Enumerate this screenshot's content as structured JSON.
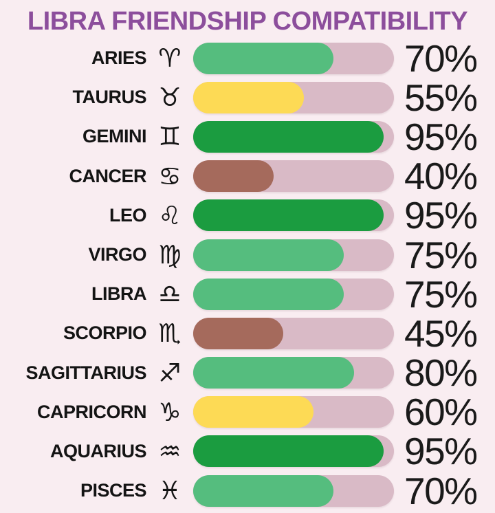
{
  "title": "LIBRA FRIENDSHIP COMPATIBILITY",
  "colors": {
    "background": "#f9edf1",
    "title": "#8c4e9c",
    "text": "#141414",
    "track": "#d9bac6",
    "green_dark": "#1b9c40",
    "green_medium": "#55bd7e",
    "yellow": "#fdda55",
    "brown": "#a56a5c"
  },
  "chart_data": {
    "type": "bar",
    "orientation": "horizontal",
    "title": "LIBRA FRIENDSHIP COMPATIBILITY",
    "unit": "%",
    "xlim": [
      0,
      100
    ],
    "grid": false,
    "legend": false,
    "categories": [
      "ARIES",
      "TAURUS",
      "GEMINI",
      "CANCER",
      "LEO",
      "VIRGO",
      "LIBRA",
      "SCORPIO",
      "SAGITTARIUS",
      "CAPRICORN",
      "AQUARIUS",
      "PISCES"
    ],
    "values": [
      70,
      55,
      95,
      40,
      95,
      75,
      75,
      45,
      80,
      60,
      95,
      70
    ],
    "rows": [
      {
        "sign": "ARIES",
        "symbol": "♈",
        "value": 70,
        "label": "70%",
        "color_key": "green_medium"
      },
      {
        "sign": "TAURUS",
        "symbol": "♉",
        "value": 55,
        "label": "55%",
        "color_key": "yellow"
      },
      {
        "sign": "GEMINI",
        "symbol": "♊",
        "value": 95,
        "label": "95%",
        "color_key": "green_dark"
      },
      {
        "sign": "CANCER",
        "symbol": "♋",
        "value": 40,
        "label": "40%",
        "color_key": "brown"
      },
      {
        "sign": "LEO",
        "symbol": "♌",
        "value": 95,
        "label": "95%",
        "color_key": "green_dark"
      },
      {
        "sign": "VIRGO",
        "symbol": "♍",
        "value": 75,
        "label": "75%",
        "color_key": "green_medium"
      },
      {
        "sign": "LIBRA",
        "symbol": "♎",
        "value": 75,
        "label": "75%",
        "color_key": "green_medium"
      },
      {
        "sign": "SCORPIO",
        "symbol": "♏",
        "value": 45,
        "label": "45%",
        "color_key": "brown"
      },
      {
        "sign": "SAGITTARIUS",
        "symbol": "♐",
        "value": 80,
        "label": "80%",
        "color_key": "green_medium"
      },
      {
        "sign": "CAPRICORN",
        "symbol": "♑",
        "value": 60,
        "label": "60%",
        "color_key": "yellow"
      },
      {
        "sign": "AQUARIUS",
        "symbol": "♒",
        "value": 95,
        "label": "95%",
        "color_key": "green_dark"
      },
      {
        "sign": "PISCES",
        "symbol": "♓",
        "value": 70,
        "label": "70%",
        "color_key": "green_medium"
      }
    ]
  }
}
